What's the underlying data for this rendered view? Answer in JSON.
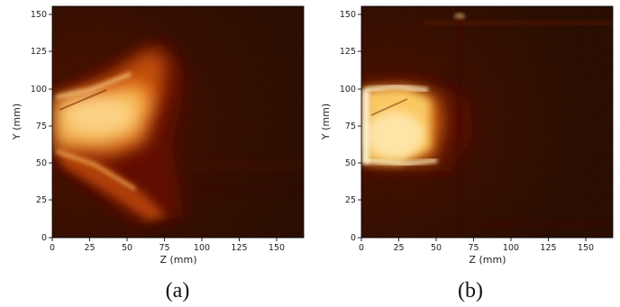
{
  "panels": [
    {
      "id": "a",
      "caption": "(a)",
      "xlabel": "Z (mm)",
      "ylabel": "Y (mm)",
      "xticks": [
        "0",
        "25",
        "50",
        "75",
        "100",
        "125",
        "150"
      ],
      "yticks": [
        "0",
        "25",
        "50",
        "75",
        "100",
        "125",
        "150"
      ],
      "colormap": "afmhot",
      "image_description": "Wide cone-shaped bright spray plume opening from the left edge, spreading between roughly Y=50 and Y=130 and fading by Z≈90 mm"
    },
    {
      "id": "b",
      "caption": "(b)",
      "xlabel": "Z (mm)",
      "ylabel": "Y (mm)",
      "xticks": [
        "0",
        "25",
        "50",
        "75",
        "100",
        "125",
        "150"
      ],
      "yticks": [
        "0",
        "25",
        "50",
        "75",
        "100",
        "125",
        "150"
      ],
      "colormap": "afmhot",
      "image_description": "Compact bright plume near the left edge between Y≈55 and Y≈100, fading by Z≈50 mm, with a faint horizontal line near Y≈145"
    }
  ],
  "colors": {
    "background_dark": "#120000",
    "glow_red": "#7a1400",
    "glow_orange": "#e86a10",
    "core_yellow": "#ffd36a",
    "core_white": "#fff6d8"
  }
}
